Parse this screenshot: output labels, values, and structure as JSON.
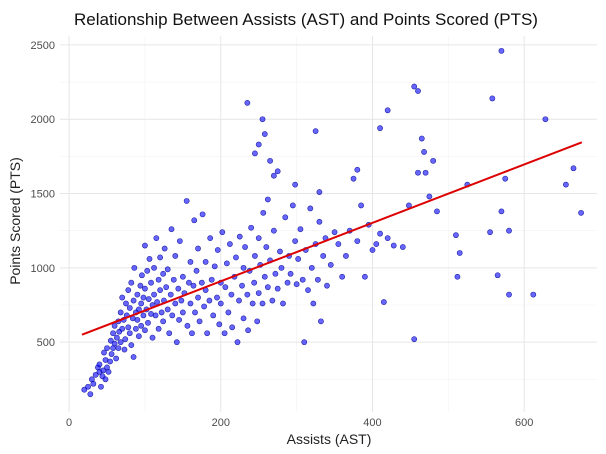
{
  "chart_data": {
    "type": "scatter",
    "title": "Relationship Between Assists (AST) and Points Scored (PTS)",
    "xlabel": "Assists (AST)",
    "ylabel": "Points Scored (PTS)",
    "xlim": [
      -12,
      696
    ],
    "ylim": [
      30,
      2560
    ],
    "x_ticks": [
      0,
      200,
      400,
      600
    ],
    "y_ticks": [
      500,
      1000,
      1500,
      2000,
      2500
    ],
    "grid": true,
    "legend": "none",
    "point_color": "#0000ff",
    "trend_color": "#dd0000",
    "trend_line": {
      "x": [
        17,
        676
      ],
      "y": [
        550,
        1845
      ]
    },
    "points": [
      [
        20,
        180
      ],
      [
        25,
        200
      ],
      [
        28,
        150
      ],
      [
        30,
        250
      ],
      [
        32,
        220
      ],
      [
        35,
        280
      ],
      [
        38,
        330
      ],
      [
        40,
        300
      ],
      [
        40,
        350
      ],
      [
        42,
        200
      ],
      [
        44,
        270
      ],
      [
        45,
        310
      ],
      [
        46,
        430
      ],
      [
        48,
        250
      ],
      [
        48,
        380
      ],
      [
        50,
        330
      ],
      [
        50,
        460
      ],
      [
        52,
        300
      ],
      [
        54,
        370
      ],
      [
        55,
        510
      ],
      [
        56,
        420
      ],
      [
        58,
        460
      ],
      [
        58,
        560
      ],
      [
        60,
        490
      ],
      [
        60,
        610
      ],
      [
        62,
        390
      ],
      [
        63,
        530
      ],
      [
        65,
        460
      ],
      [
        65,
        640
      ],
      [
        66,
        570
      ],
      [
        68,
        500
      ],
      [
        68,
        700
      ],
      [
        70,
        590
      ],
      [
        70,
        800
      ],
      [
        72,
        650
      ],
      [
        73,
        450
      ],
      [
        74,
        520
      ],
      [
        75,
        760
      ],
      [
        76,
        680
      ],
      [
        78,
        600
      ],
      [
        78,
        850
      ],
      [
        80,
        730
      ],
      [
        80,
        560
      ],
      [
        82,
        480
      ],
      [
        82,
        900
      ],
      [
        84,
        660
      ],
      [
        85,
        400
      ],
      [
        85,
        780
      ],
      [
        86,
        1000
      ],
      [
        88,
        700
      ],
      [
        88,
        590
      ],
      [
        90,
        820
      ],
      [
        90,
        650
      ],
      [
        92,
        540
      ],
      [
        92,
        720
      ],
      [
        94,
        880
      ],
      [
        95,
        610
      ],
      [
        95,
        760
      ],
      [
        96,
        950
      ],
      [
        98,
        680
      ],
      [
        98,
        800
      ],
      [
        100,
        580
      ],
      [
        100,
        860
      ],
      [
        100,
        1150
      ],
      [
        102,
        720
      ],
      [
        103,
        980
      ],
      [
        104,
        630
      ],
      [
        105,
        790
      ],
      [
        106,
        1060
      ],
      [
        108,
        690
      ],
      [
        108,
        900
      ],
      [
        110,
        750
      ],
      [
        110,
        530
      ],
      [
        112,
        1000
      ],
      [
        112,
        820
      ],
      [
        114,
        680
      ],
      [
        115,
        1200
      ],
      [
        116,
        770
      ],
      [
        118,
        590
      ],
      [
        118,
        920
      ],
      [
        120,
        850
      ],
      [
        120,
        1070
      ],
      [
        122,
        700
      ],
      [
        124,
        960
      ],
      [
        124,
        640
      ],
      [
        125,
        780
      ],
      [
        126,
        1130
      ],
      [
        128,
        870
      ],
      [
        130,
        720
      ],
      [
        130,
        990
      ],
      [
        132,
        560
      ],
      [
        134,
        820
      ],
      [
        135,
        1260
      ],
      [
        136,
        680
      ],
      [
        138,
        920
      ],
      [
        140,
        760
      ],
      [
        140,
        1080
      ],
      [
        142,
        500
      ],
      [
        144,
        860
      ],
      [
        145,
        650
      ],
      [
        146,
        1180
      ],
      [
        148,
        780
      ],
      [
        150,
        940
      ],
      [
        150,
        700
      ],
      [
        152,
        830
      ],
      [
        155,
        1450
      ],
      [
        156,
        610
      ],
      [
        158,
        900
      ],
      [
        160,
        760
      ],
      [
        160,
        1040
      ],
      [
        162,
        560
      ],
      [
        164,
        880
      ],
      [
        165,
        1320
      ],
      [
        166,
        700
      ],
      [
        168,
        980
      ],
      [
        170,
        800
      ],
      [
        170,
        1130
      ],
      [
        172,
        640
      ],
      [
        175,
        900
      ],
      [
        176,
        1360
      ],
      [
        178,
        740
      ],
      [
        180,
        850
      ],
      [
        180,
        1040
      ],
      [
        182,
        560
      ],
      [
        185,
        780
      ],
      [
        186,
        1200
      ],
      [
        188,
        920
      ],
      [
        190,
        680
      ],
      [
        192,
        1010
      ],
      [
        195,
        800
      ],
      [
        196,
        1120
      ],
      [
        198,
        620
      ],
      [
        200,
        900
      ],
      [
        200,
        760
      ],
      [
        202,
        1240
      ],
      [
        205,
        560
      ],
      [
        206,
        870
      ],
      [
        208,
        1030
      ],
      [
        210,
        700
      ],
      [
        212,
        1160
      ],
      [
        214,
        820
      ],
      [
        215,
        600
      ],
      [
        218,
        940
      ],
      [
        220,
        1070
      ],
      [
        222,
        500
      ],
      [
        224,
        780
      ],
      [
        225,
        1210
      ],
      [
        228,
        880
      ],
      [
        230,
        1000
      ],
      [
        230,
        660
      ],
      [
        232,
        1140
      ],
      [
        235,
        820
      ],
      [
        236,
        580
      ],
      [
        238,
        980
      ],
      [
        240,
        1270
      ],
      [
        242,
        760
      ],
      [
        244,
        900
      ],
      [
        245,
        1080
      ],
      [
        248,
        640
      ],
      [
        250,
        1200
      ],
      [
        250,
        830
      ],
      [
        252,
        1020
      ],
      [
        255,
        760
      ],
      [
        256,
        1370
      ],
      [
        258,
        940
      ],
      [
        260,
        1140
      ],
      [
        262,
        870
      ],
      [
        265,
        1050
      ],
      [
        268,
        780
      ],
      [
        270,
        1250
      ],
      [
        272,
        960
      ],
      [
        275,
        860
      ],
      [
        278,
        1110
      ],
      [
        280,
        1000
      ],
      [
        282,
        760
      ],
      [
        285,
        1340
      ],
      [
        288,
        900
      ],
      [
        290,
        1080
      ],
      [
        292,
        960
      ],
      [
        295,
        1420
      ],
      [
        298,
        1180
      ],
      [
        300,
        890
      ],
      [
        302,
        1060
      ],
      [
        305,
        1260
      ],
      [
        308,
        920
      ],
      [
        310,
        500
      ],
      [
        312,
        1120
      ],
      [
        315,
        850
      ],
      [
        318,
        1400
      ],
      [
        320,
        1000
      ],
      [
        322,
        760
      ],
      [
        325,
        1160
      ],
      [
        328,
        920
      ],
      [
        330,
        1310
      ],
      [
        332,
        640
      ],
      [
        335,
        1080
      ],
      [
        338,
        1200
      ],
      [
        340,
        880
      ],
      [
        345,
        1020
      ],
      [
        350,
        1240
      ],
      [
        355,
        1160
      ],
      [
        360,
        940
      ],
      [
        365,
        1080
      ],
      [
        370,
        1250
      ],
      [
        375,
        1600
      ],
      [
        380,
        1180
      ],
      [
        385,
        1420
      ],
      [
        390,
        940
      ],
      [
        395,
        1290
      ],
      [
        400,
        1120
      ],
      [
        405,
        1160
      ],
      [
        410,
        1230
      ],
      [
        415,
        770
      ],
      [
        420,
        1200
      ],
      [
        428,
        1150
      ],
      [
        440,
        1140
      ],
      [
        448,
        1420
      ],
      [
        455,
        520
      ],
      [
        460,
        1640
      ],
      [
        465,
        1870
      ],
      [
        468,
        1780
      ],
      [
        470,
        1640
      ],
      [
        475,
        1480
      ],
      [
        480,
        1720
      ],
      [
        485,
        1380
      ],
      [
        510,
        1220
      ],
      [
        512,
        940
      ],
      [
        515,
        1100
      ],
      [
        525,
        1560
      ],
      [
        555,
        1240
      ],
      [
        558,
        2140
      ],
      [
        565,
        950
      ],
      [
        570,
        1380
      ],
      [
        575,
        1600
      ],
      [
        580,
        820
      ],
      [
        580,
        1250
      ],
      [
        612,
        820
      ],
      [
        628,
        2000
      ],
      [
        655,
        1560
      ],
      [
        665,
        1670
      ],
      [
        675,
        1370
      ],
      [
        235,
        2110
      ],
      [
        255,
        2000
      ],
      [
        258,
        1900
      ],
      [
        245,
        1770
      ],
      [
        250,
        1830
      ],
      [
        265,
        1720
      ],
      [
        270,
        1620
      ],
      [
        262,
        1460
      ],
      [
        275,
        1650
      ],
      [
        298,
        1560
      ],
      [
        325,
        1920
      ],
      [
        330,
        1510
      ],
      [
        380,
        1660
      ],
      [
        410,
        1940
      ],
      [
        420,
        2060
      ],
      [
        455,
        2220
      ],
      [
        460,
        2190
      ],
      [
        570,
        2460
      ]
    ]
  }
}
